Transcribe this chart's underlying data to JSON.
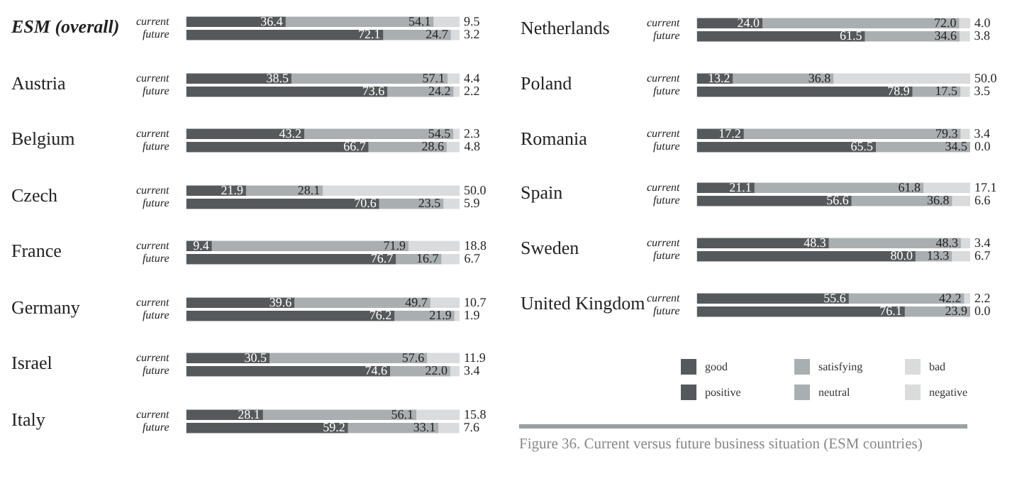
{
  "chart_data": [
    {
      "type": "bar",
      "title": "ESM (overall)",
      "orientation": "horizontal",
      "stacked": true,
      "tick_labels": "y",
      "grid": false,
      "xlim": [
        0,
        100
      ],
      "categories": [
        "current",
        "future"
      ],
      "series": [
        {
          "color": "#55595b",
          "values": [
            36.4,
            null
          ],
          "value_labels": [
            "36.4",
            null
          ]
        },
        {
          "color": "#a9aeb1",
          "values": [
            54.1,
            null
          ],
          "value_labels": [
            "54.1",
            null
          ]
        },
        {
          "color": "#d9dbdc",
          "values": [
            9.5,
            null
          ],
          "value_labels": [
            "9.5",
            null
          ]
        },
        {
          "color": "#55595b",
          "values": [
            null,
            72.1
          ],
          "value_labels": [
            null,
            "72.1"
          ]
        },
        {
          "color": "#a9aeb1",
          "values": [
            null,
            24.7
          ],
          "value_labels": [
            null,
            "24.7"
          ]
        },
        {
          "color": "#d9dbdc",
          "values": [
            null,
            3.2
          ],
          "value_labels": [
            null,
            "3.2"
          ]
        }
      ]
    },
    {
      "type": "bar",
      "title": "Austria",
      "orientation": "horizontal",
      "stacked": true,
      "tick_labels": "y",
      "grid": false,
      "xlim": [
        0,
        100
      ],
      "categories": [
        "current",
        "future"
      ],
      "series": [
        {
          "color": "#55595b",
          "values": [
            38.5,
            null
          ],
          "value_labels": [
            "38.5",
            null
          ]
        },
        {
          "color": "#a9aeb1",
          "values": [
            57.1,
            null
          ],
          "value_labels": [
            "57.1",
            null
          ]
        },
        {
          "color": "#d9dbdc",
          "values": [
            4.4,
            null
          ],
          "value_labels": [
            "4.4",
            null
          ]
        },
        {
          "color": "#55595b",
          "values": [
            null,
            73.6
          ],
          "value_labels": [
            null,
            "73.6"
          ]
        },
        {
          "color": "#a9aeb1",
          "values": [
            null,
            24.2
          ],
          "value_labels": [
            null,
            "24.2"
          ]
        },
        {
          "color": "#d9dbdc",
          "values": [
            null,
            2.2
          ],
          "value_labels": [
            null,
            "2.2"
          ]
        }
      ]
    },
    {
      "type": "bar",
      "title": "Belgium",
      "orientation": "horizontal",
      "stacked": true,
      "tick_labels": "y",
      "grid": false,
      "xlim": [
        0,
        100
      ],
      "categories": [
        "current",
        "future"
      ],
      "series": [
        {
          "color": "#55595b",
          "values": [
            43.2,
            null
          ],
          "value_labels": [
            "43.2",
            null
          ]
        },
        {
          "color": "#a9aeb1",
          "values": [
            54.5,
            null
          ],
          "value_labels": [
            "54.5",
            null
          ]
        },
        {
          "color": "#d9dbdc",
          "values": [
            2.3,
            null
          ],
          "value_labels": [
            "2.3",
            null
          ]
        },
        {
          "color": "#55595b",
          "values": [
            null,
            66.7
          ],
          "value_labels": [
            null,
            "66.7"
          ]
        },
        {
          "color": "#a9aeb1",
          "values": [
            null,
            28.6
          ],
          "value_labels": [
            null,
            "28.6"
          ]
        },
        {
          "color": "#d9dbdc",
          "values": [
            null,
            4.8
          ],
          "value_labels": [
            null,
            "4.8"
          ]
        }
      ]
    },
    {
      "type": "bar",
      "title": "Czech",
      "orientation": "horizontal",
      "stacked": true,
      "tick_labels": "y",
      "grid": false,
      "xlim": [
        0,
        100
      ],
      "categories": [
        "current",
        "future"
      ],
      "series": [
        {
          "color": "#55595b",
          "values": [
            21.9,
            null
          ],
          "value_labels": [
            "21.9",
            null
          ]
        },
        {
          "color": "#a9aeb1",
          "values": [
            28.1,
            null
          ],
          "value_labels": [
            "28.1",
            null
          ]
        },
        {
          "color": "#d9dbdc",
          "values": [
            50,
            null
          ],
          "value_labels": [
            "50.0",
            null
          ]
        },
        {
          "color": "#55595b",
          "values": [
            null,
            70.6
          ],
          "value_labels": [
            null,
            "70.6"
          ]
        },
        {
          "color": "#a9aeb1",
          "values": [
            null,
            23.5
          ],
          "value_labels": [
            null,
            "23.5"
          ]
        },
        {
          "color": "#d9dbdc",
          "values": [
            null,
            5.9
          ],
          "value_labels": [
            null,
            "5.9"
          ]
        }
      ]
    },
    {
      "type": "bar",
      "title": "France",
      "orientation": "horizontal",
      "stacked": true,
      "tick_labels": "y",
      "grid": false,
      "xlim": [
        0,
        100
      ],
      "categories": [
        "current",
        "future"
      ],
      "series": [
        {
          "color": "#55595b",
          "values": [
            9.4,
            null
          ],
          "value_labels": [
            "9.4",
            null
          ]
        },
        {
          "color": "#a9aeb1",
          "values": [
            71.9,
            null
          ],
          "value_labels": [
            "71.9",
            null
          ]
        },
        {
          "color": "#d9dbdc",
          "values": [
            18.8,
            null
          ],
          "value_labels": [
            "18.8",
            null
          ]
        },
        {
          "color": "#55595b",
          "values": [
            null,
            76.7
          ],
          "value_labels": [
            null,
            "76.7"
          ]
        },
        {
          "color": "#a9aeb1",
          "values": [
            null,
            16.7
          ],
          "value_labels": [
            null,
            "16.7"
          ]
        },
        {
          "color": "#d9dbdc",
          "values": [
            null,
            6.7
          ],
          "value_labels": [
            null,
            "6.7"
          ]
        }
      ]
    },
    {
      "type": "bar",
      "title": "Germany",
      "orientation": "horizontal",
      "stacked": true,
      "tick_labels": "y",
      "grid": false,
      "xlim": [
        0,
        100
      ],
      "categories": [
        "current",
        "future"
      ],
      "series": [
        {
          "color": "#55595b",
          "values": [
            39.6,
            null
          ],
          "value_labels": [
            "39.6",
            null
          ]
        },
        {
          "color": "#a9aeb1",
          "values": [
            49.7,
            null
          ],
          "value_labels": [
            "49.7",
            null
          ]
        },
        {
          "color": "#d9dbdc",
          "values": [
            10.7,
            null
          ],
          "value_labels": [
            "10.7",
            null
          ]
        },
        {
          "color": "#55595b",
          "values": [
            null,
            76.2
          ],
          "value_labels": [
            null,
            "76.2"
          ]
        },
        {
          "color": "#a9aeb1",
          "values": [
            null,
            21.9
          ],
          "value_labels": [
            null,
            "21.9"
          ]
        },
        {
          "color": "#d9dbdc",
          "values": [
            null,
            1.9
          ],
          "value_labels": [
            null,
            "1.9"
          ]
        }
      ]
    },
    {
      "type": "bar",
      "title": "Israel",
      "orientation": "horizontal",
      "stacked": true,
      "tick_labels": "y",
      "grid": false,
      "xlim": [
        0,
        100
      ],
      "categories": [
        "current",
        "future"
      ],
      "series": [
        {
          "color": "#55595b",
          "values": [
            30.5,
            null
          ],
          "value_labels": [
            "30.5",
            null
          ]
        },
        {
          "color": "#a9aeb1",
          "values": [
            57.6,
            null
          ],
          "value_labels": [
            "57.6",
            null
          ]
        },
        {
          "color": "#d9dbdc",
          "values": [
            11.9,
            null
          ],
          "value_labels": [
            "11.9",
            null
          ]
        },
        {
          "color": "#55595b",
          "values": [
            null,
            74.6
          ],
          "value_labels": [
            null,
            "74.6"
          ]
        },
        {
          "color": "#a9aeb1",
          "values": [
            null,
            22
          ],
          "value_labels": [
            null,
            "22.0"
          ]
        },
        {
          "color": "#d9dbdc",
          "values": [
            null,
            3.4
          ],
          "value_labels": [
            null,
            "3.4"
          ]
        }
      ]
    },
    {
      "type": "bar",
      "title": "Italy",
      "orientation": "horizontal",
      "stacked": true,
      "tick_labels": "y",
      "grid": false,
      "xlim": [
        0,
        100
      ],
      "categories": [
        "current",
        "future"
      ],
      "series": [
        {
          "color": "#55595b",
          "values": [
            28.1,
            null
          ],
          "value_labels": [
            "28.1",
            null
          ]
        },
        {
          "color": "#a9aeb1",
          "values": [
            56.1,
            null
          ],
          "value_labels": [
            "56.1",
            null
          ]
        },
        {
          "color": "#d9dbdc",
          "values": [
            15.8,
            null
          ],
          "value_labels": [
            "15.8",
            null
          ]
        },
        {
          "color": "#55595b",
          "values": [
            null,
            59.2
          ],
          "value_labels": [
            null,
            "59.2"
          ]
        },
        {
          "color": "#a9aeb1",
          "values": [
            null,
            33.1
          ],
          "value_labels": [
            null,
            "33.1"
          ]
        },
        {
          "color": "#d9dbdc",
          "values": [
            null,
            7.6
          ],
          "value_labels": [
            null,
            "7.6"
          ]
        }
      ]
    },
    {
      "type": "bar",
      "title": "Netherlands",
      "orientation": "horizontal",
      "stacked": true,
      "tick_labels": "y",
      "grid": false,
      "xlim": [
        0,
        100
      ],
      "categories": [
        "current",
        "future"
      ],
      "series": [
        {
          "color": "#55595b",
          "values": [
            24,
            null
          ],
          "value_labels": [
            "24.0",
            null
          ]
        },
        {
          "color": "#a9aeb1",
          "values": [
            72,
            null
          ],
          "value_labels": [
            "72.0",
            null
          ]
        },
        {
          "color": "#d9dbdc",
          "values": [
            4,
            null
          ],
          "value_labels": [
            "4.0",
            null
          ]
        },
        {
          "color": "#55595b",
          "values": [
            null,
            61.5
          ],
          "value_labels": [
            null,
            "61.5"
          ]
        },
        {
          "color": "#a9aeb1",
          "values": [
            null,
            34.6
          ],
          "value_labels": [
            null,
            "34.6"
          ]
        },
        {
          "color": "#d9dbdc",
          "values": [
            null,
            3.8
          ],
          "value_labels": [
            null,
            "3.8"
          ]
        }
      ]
    },
    {
      "type": "bar",
      "title": "Poland",
      "orientation": "horizontal",
      "stacked": true,
      "tick_labels": "y",
      "grid": false,
      "xlim": [
        0,
        100
      ],
      "categories": [
        "current",
        "future"
      ],
      "series": [
        {
          "color": "#55595b",
          "values": [
            13.2,
            null
          ],
          "value_labels": [
            "13.2",
            null
          ]
        },
        {
          "color": "#a9aeb1",
          "values": [
            36.8,
            null
          ],
          "value_labels": [
            "36.8",
            null
          ]
        },
        {
          "color": "#d9dbdc",
          "values": [
            50,
            null
          ],
          "value_labels": [
            "50.0",
            null
          ]
        },
        {
          "color": "#55595b",
          "values": [
            null,
            78.9
          ],
          "value_labels": [
            null,
            "78.9"
          ]
        },
        {
          "color": "#a9aeb1",
          "values": [
            null,
            17.5
          ],
          "value_labels": [
            null,
            "17.5"
          ]
        },
        {
          "color": "#d9dbdc",
          "values": [
            null,
            3.5
          ],
          "value_labels": [
            null,
            "3.5"
          ]
        }
      ]
    },
    {
      "type": "bar",
      "title": "Romania",
      "orientation": "horizontal",
      "stacked": true,
      "tick_labels": "y",
      "grid": false,
      "xlim": [
        0,
        100
      ],
      "categories": [
        "current",
        "future"
      ],
      "series": [
        {
          "color": "#55595b",
          "values": [
            17.2,
            null
          ],
          "value_labels": [
            "17.2",
            null
          ]
        },
        {
          "color": "#a9aeb1",
          "values": [
            79.3,
            null
          ],
          "value_labels": [
            "79.3",
            null
          ]
        },
        {
          "color": "#d9dbdc",
          "values": [
            3.4,
            null
          ],
          "value_labels": [
            "3.4",
            null
          ]
        },
        {
          "color": "#55595b",
          "values": [
            null,
            65.5
          ],
          "value_labels": [
            null,
            "65.5"
          ]
        },
        {
          "color": "#a9aeb1",
          "values": [
            null,
            34.5
          ],
          "value_labels": [
            null,
            "34.5"
          ]
        },
        {
          "color": "#d9dbdc",
          "values": [
            null,
            0
          ],
          "value_labels": [
            null,
            "0.0"
          ]
        }
      ]
    },
    {
      "type": "bar",
      "title": "Spain",
      "orientation": "horizontal",
      "stacked": true,
      "tick_labels": "y",
      "grid": false,
      "xlim": [
        0,
        100
      ],
      "categories": [
        "current",
        "future"
      ],
      "series": [
        {
          "color": "#55595b",
          "values": [
            21.1,
            null
          ],
          "value_labels": [
            "21.1",
            null
          ]
        },
        {
          "color": "#a9aeb1",
          "values": [
            61.8,
            null
          ],
          "value_labels": [
            "61.8",
            null
          ]
        },
        {
          "color": "#d9dbdc",
          "values": [
            17.1,
            null
          ],
          "value_labels": [
            "17.1",
            null
          ]
        },
        {
          "color": "#55595b",
          "values": [
            null,
            56.6
          ],
          "value_labels": [
            null,
            "56.6"
          ]
        },
        {
          "color": "#a9aeb1",
          "values": [
            null,
            36.8
          ],
          "value_labels": [
            null,
            "36.8"
          ]
        },
        {
          "color": "#d9dbdc",
          "values": [
            null,
            6.6
          ],
          "value_labels": [
            null,
            "6.6"
          ]
        }
      ]
    },
    {
      "type": "bar",
      "title": "Sweden",
      "orientation": "horizontal",
      "stacked": true,
      "tick_labels": "y",
      "grid": false,
      "xlim": [
        0,
        100
      ],
      "categories": [
        "current",
        "future"
      ],
      "series": [
        {
          "color": "#55595b",
          "values": [
            48.3,
            null
          ],
          "value_labels": [
            "48.3",
            null
          ]
        },
        {
          "color": "#a9aeb1",
          "values": [
            48.3,
            null
          ],
          "value_labels": [
            "48.3",
            null
          ]
        },
        {
          "color": "#d9dbdc",
          "values": [
            3.4,
            null
          ],
          "value_labels": [
            "3.4",
            null
          ]
        },
        {
          "color": "#55595b",
          "values": [
            null,
            80
          ],
          "value_labels": [
            null,
            "80.0"
          ]
        },
        {
          "color": "#a9aeb1",
          "values": [
            null,
            13.3
          ],
          "value_labels": [
            null,
            "13.3"
          ]
        },
        {
          "color": "#d9dbdc",
          "values": [
            null,
            6.7
          ],
          "value_labels": [
            null,
            "6.7"
          ]
        }
      ]
    },
    {
      "type": "bar",
      "title": "United Kingdom",
      "orientation": "horizontal",
      "stacked": true,
      "tick_labels": "y",
      "grid": false,
      "xlim": [
        0,
        100
      ],
      "legend": "bottom",
      "annotations": [
        "Figure 36. Current versus future business situation (ESM countries)"
      ],
      "categories": [
        "current",
        "future"
      ],
      "series": [
        {
          "name": "good",
          "color": "#55595b",
          "values": [
            55.6,
            null
          ],
          "value_labels": [
            "55.6",
            null
          ]
        },
        {
          "name": "satisfying",
          "color": "#a9aeb1",
          "values": [
            42.2,
            null
          ],
          "value_labels": [
            "42.2",
            null
          ]
        },
        {
          "name": "bad",
          "color": "#d9dbdc",
          "values": [
            2.2,
            null
          ],
          "value_labels": [
            "2.2",
            null
          ]
        },
        {
          "name": "positive",
          "color": "#55595b",
          "values": [
            null,
            76.1
          ],
          "value_labels": [
            null,
            "76.1"
          ]
        },
        {
          "name": "neutral",
          "color": "#a9aeb1",
          "values": [
            null,
            23.9
          ],
          "value_labels": [
            null,
            "23.9"
          ]
        },
        {
          "name": "negative",
          "color": "#d9dbdc",
          "values": [
            null,
            0
          ],
          "value_labels": [
            null,
            "0.0"
          ]
        }
      ]
    }
  ]
}
